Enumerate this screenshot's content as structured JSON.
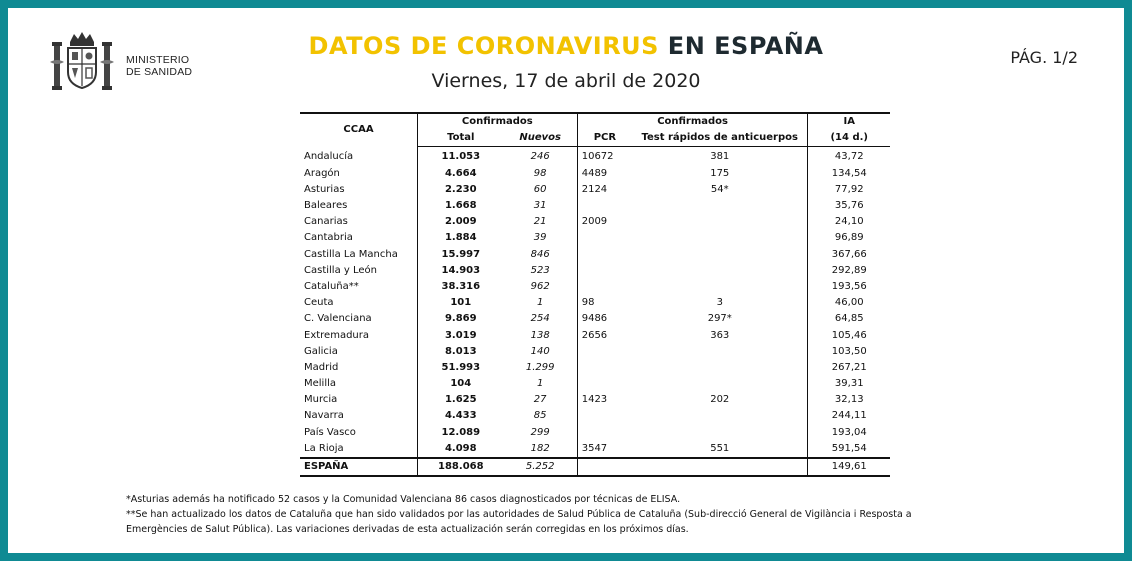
{
  "header": {
    "ministry_line1": "MINISTERIO",
    "ministry_line2": "DE SANIDAD",
    "title_highlight": "DATOS DE CORONAVIRUS",
    "title_rest": " EN ESPAÑA",
    "subtitle": "Viernes, 17 de abril de 2020",
    "page": "PÁG. 1/2"
  },
  "colors": {
    "frame": "#0f8a93",
    "title_accent": "#f2c200",
    "title_dark": "#1e2a30"
  },
  "table": {
    "group_headers": {
      "ccaa": "CCAA",
      "confirmados1": "Confirmados",
      "confirmados2": "Confirmados",
      "ia": "IA"
    },
    "sub_headers": {
      "total": "Total",
      "nuevos": "Nuevos",
      "pcr": "PCR",
      "rapidos": "Test rápidos de anticuerpos",
      "ia14": "(14 d.)"
    },
    "rows": [
      {
        "ccaa": "Andalucía",
        "total": "11.053",
        "nuevos": "246",
        "pcr": "10672",
        "rapidos": "381",
        "ia": "43,72"
      },
      {
        "ccaa": "Aragón",
        "total": "4.664",
        "nuevos": "98",
        "pcr": "4489",
        "rapidos": "175",
        "ia": "134,54"
      },
      {
        "ccaa": "Asturias",
        "total": "2.230",
        "nuevos": "60",
        "pcr": "2124",
        "rapidos": "54*",
        "ia": "77,92"
      },
      {
        "ccaa": "Baleares",
        "total": "1.668",
        "nuevos": "31",
        "pcr": "",
        "rapidos": "",
        "ia": "35,76"
      },
      {
        "ccaa": "Canarias",
        "total": "2.009",
        "nuevos": "21",
        "pcr": "2009",
        "rapidos": "",
        "ia": "24,10"
      },
      {
        "ccaa": "Cantabria",
        "total": "1.884",
        "nuevos": "39",
        "pcr": "",
        "rapidos": "",
        "ia": "96,89"
      },
      {
        "ccaa": "Castilla La Mancha",
        "total": "15.997",
        "nuevos": "846",
        "pcr": "",
        "rapidos": "",
        "ia": "367,66"
      },
      {
        "ccaa": "Castilla y León",
        "total": "14.903",
        "nuevos": "523",
        "pcr": "",
        "rapidos": "",
        "ia": "292,89"
      },
      {
        "ccaa": "Cataluña**",
        "total": "38.316",
        "nuevos": "962",
        "pcr": "",
        "rapidos": "",
        "ia": "193,56"
      },
      {
        "ccaa": "Ceuta",
        "total": "101",
        "nuevos": "1",
        "pcr": "98",
        "rapidos": "3",
        "ia": "46,00"
      },
      {
        "ccaa": "C. Valenciana",
        "total": "9.869",
        "nuevos": "254",
        "pcr": "9486",
        "rapidos": "297*",
        "ia": "64,85"
      },
      {
        "ccaa": "Extremadura",
        "total": "3.019",
        "nuevos": "138",
        "pcr": "2656",
        "rapidos": "363",
        "ia": "105,46"
      },
      {
        "ccaa": "Galicia",
        "total": "8.013",
        "nuevos": "140",
        "pcr": "",
        "rapidos": "",
        "ia": "103,50"
      },
      {
        "ccaa": "Madrid",
        "total": "51.993",
        "nuevos": "1.299",
        "pcr": "",
        "rapidos": "",
        "ia": "267,21"
      },
      {
        "ccaa": "Melilla",
        "total": "104",
        "nuevos": "1",
        "pcr": "",
        "rapidos": "",
        "ia": "39,31"
      },
      {
        "ccaa": "Murcia",
        "total": "1.625",
        "nuevos": "27",
        "pcr": "1423",
        "rapidos": "202",
        "ia": "32,13"
      },
      {
        "ccaa": "Navarra",
        "total": "4.433",
        "nuevos": "85",
        "pcr": "",
        "rapidos": "",
        "ia": "244,11"
      },
      {
        "ccaa": "País Vasco",
        "total": "12.089",
        "nuevos": "299",
        "pcr": "",
        "rapidos": "",
        "ia": "193,04"
      },
      {
        "ccaa": "La Rioja",
        "total": "4.098",
        "nuevos": "182",
        "pcr": "3547",
        "rapidos": "551",
        "ia": "591,54"
      }
    ],
    "total_row": {
      "ccaa": "ESPAÑA",
      "total": "188.068",
      "nuevos": "5.252",
      "pcr": "",
      "rapidos": "",
      "ia": "149,61"
    }
  },
  "notes": {
    "note1": "*Asturias además ha notificado 52 casos y la Comunidad Valenciana 86 casos  diagnosticados por técnicas de ELISA.",
    "note2a": "**Se han actualizado los datos de Cataluña que han sido validados por las autoridades de Salud Pública de Cataluña (Sub-direcció General de Vigilància i Resposta a",
    "note2b": "Emergències de Salut Pública).  Las variaciones derivadas de esta actualización serán corregidas en los próximos días."
  }
}
